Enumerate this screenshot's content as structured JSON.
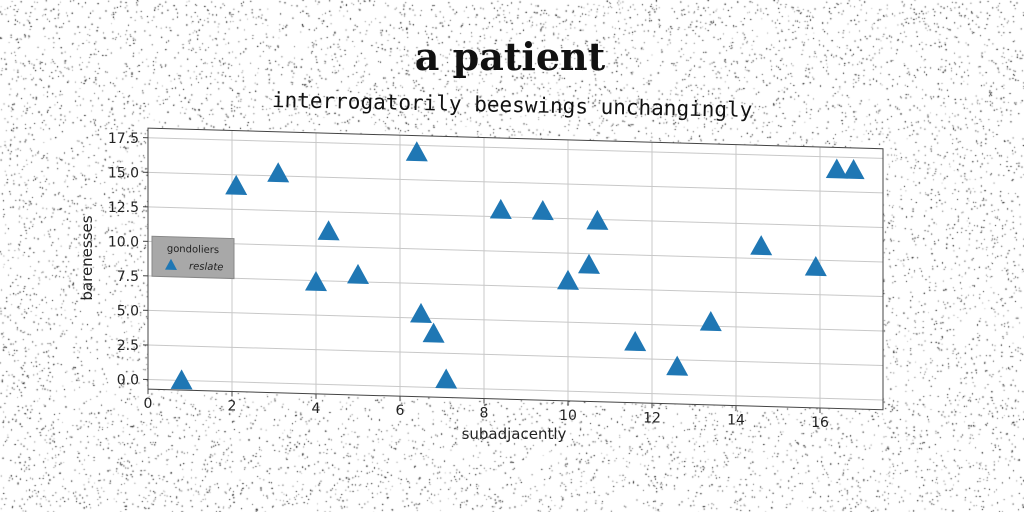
{
  "chart_data": {
    "type": "scatter",
    "title": "a patient",
    "subtitle": "interrogatorily beeswings unchangingly",
    "xlabel": "subadjacently",
    "ylabel": "barenesses",
    "xlim": [
      0,
      17.5
    ],
    "ylim": [
      -0.7,
      18.2
    ],
    "xticks": [
      0,
      2,
      4,
      6,
      8,
      10,
      12,
      14,
      16
    ],
    "yticks": [
      0.0,
      2.5,
      5.0,
      7.5,
      10.0,
      12.5,
      15.0,
      17.5
    ],
    "xtick_labels": [
      "0",
      "2",
      "4",
      "6",
      "8",
      "10",
      "12",
      "14",
      "16"
    ],
    "ytick_labels": [
      "0.0",
      "2.5",
      "5.0",
      "7.5",
      "10.0",
      "12.5",
      "15.0",
      "17.5"
    ],
    "grid": true,
    "legend": {
      "title": "gondoliers",
      "placement": "center-left",
      "entries": [
        "reslate"
      ]
    },
    "marker": "triangle-up",
    "color": "#1f77b4",
    "series": [
      {
        "name": "reslate",
        "x": [
          0.8,
          2.1,
          3.1,
          4.0,
          4.3,
          5.0,
          6.4,
          6.5,
          6.8,
          7.1,
          8.4,
          9.4,
          10.0,
          10.5,
          10.7,
          11.6,
          12.6,
          13.4,
          14.6,
          15.9,
          16.4,
          16.8
        ],
        "y": [
          0.0,
          14.2,
          15.2,
          7.4,
          11.1,
          8.0,
          17.0,
          5.3,
          3.9,
          0.6,
          13.0,
          13.0,
          8.0,
          9.2,
          12.4,
          3.7,
          2.0,
          5.3,
          10.9,
          9.5,
          16.6,
          16.6
        ]
      }
    ]
  }
}
